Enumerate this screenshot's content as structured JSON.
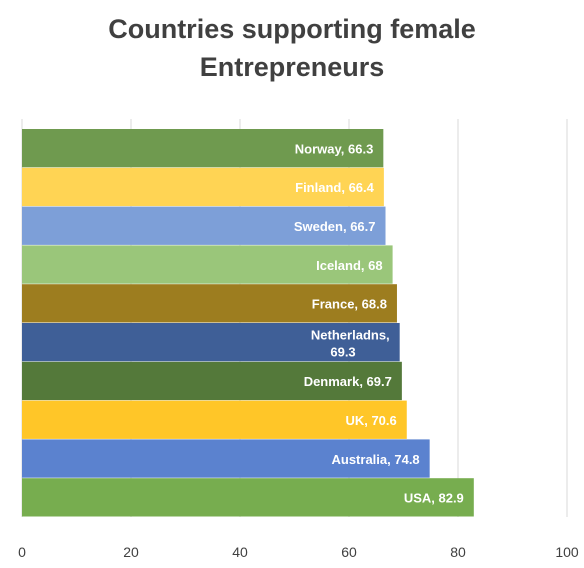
{
  "chart_data": {
    "type": "bar",
    "orientation": "horizontal",
    "title": "Countries supporting female\nEntrepreneurs",
    "categories": [
      "Norway",
      "Finland",
      "Sweden",
      "Iceland",
      "France",
      "Netherladns",
      "Denmark",
      "UK",
      "Australia",
      "USA"
    ],
    "values": [
      66.3,
      66.4,
      66.7,
      68,
      68.8,
      69.3,
      69.7,
      70.6,
      74.8,
      82.9
    ],
    "data_labels": [
      "Norway, 66.3",
      "Finland, 66.4",
      "Sweden, 66.7",
      "Iceland, 68",
      "France, 68.8",
      "Netherladns, 69.3",
      "Denmark, 69.7",
      "UK, 70.6",
      "Australia, 74.8",
      "USA, 82.9"
    ],
    "colors": [
      "#6f9a4f",
      "#ffd454",
      "#7d9fd8",
      "#9ac67a",
      "#9d7d1f",
      "#3f5f97",
      "#54793a",
      "#ffc628",
      "#5b82cf",
      "#77ad4f"
    ],
    "xlim": [
      0,
      100
    ],
    "xticks": [
      0,
      20,
      40,
      60,
      80,
      100
    ],
    "xtick_labels": [
      "0",
      "20",
      "40",
      "60",
      "80",
      "100"
    ],
    "grid": true,
    "legend": "none"
  }
}
